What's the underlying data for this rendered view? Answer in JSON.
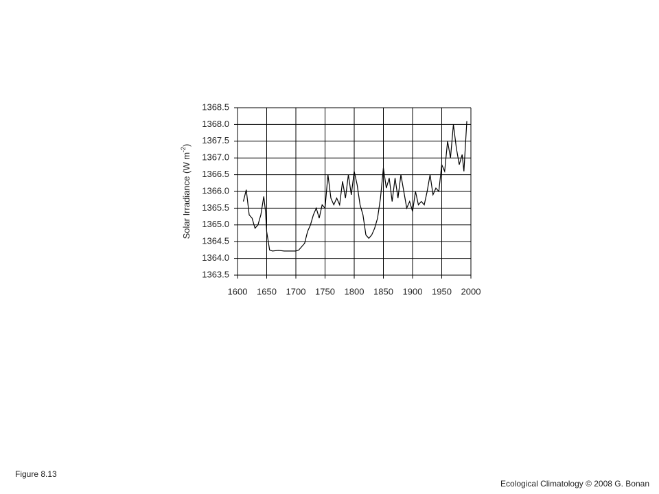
{
  "chart_data": {
    "type": "line",
    "ylabel": [
      "Solar Irradiance (W m",
      "-2",
      ")"
    ],
    "x": [
      1610,
      1615,
      1620,
      1625,
      1630,
      1635,
      1640,
      1645,
      1648,
      1650,
      1655,
      1660,
      1670,
      1680,
      1690,
      1700,
      1705,
      1710,
      1715,
      1720,
      1725,
      1730,
      1735,
      1740,
      1745,
      1750,
      1755,
      1760,
      1765,
      1770,
      1775,
      1780,
      1785,
      1790,
      1795,
      1800,
      1805,
      1810,
      1815,
      1820,
      1825,
      1830,
      1835,
      1840,
      1845,
      1850,
      1855,
      1860,
      1865,
      1870,
      1875,
      1880,
      1885,
      1890,
      1895,
      1900,
      1905,
      1910,
      1915,
      1920,
      1925,
      1930,
      1935,
      1940,
      1945,
      1950,
      1955,
      1960,
      1965,
      1970,
      1975,
      1980,
      1985,
      1988,
      1993
    ],
    "series": [
      {
        "name": "Solar Irradiance",
        "color": "#000000",
        "values": [
          1365.7,
          1366.05,
          1365.3,
          1365.2,
          1364.9,
          1365.0,
          1365.3,
          1365.85,
          1365.4,
          1364.8,
          1364.25,
          1364.22,
          1364.24,
          1364.22,
          1364.22,
          1364.22,
          1364.25,
          1364.35,
          1364.45,
          1364.8,
          1365.0,
          1365.3,
          1365.5,
          1365.2,
          1365.6,
          1365.5,
          1366.5,
          1365.8,
          1365.6,
          1365.8,
          1365.6,
          1366.3,
          1365.8,
          1366.5,
          1365.9,
          1366.6,
          1366.2,
          1365.6,
          1365.3,
          1364.7,
          1364.6,
          1364.7,
          1364.9,
          1365.2,
          1365.8,
          1366.7,
          1366.1,
          1366.4,
          1365.7,
          1366.4,
          1365.8,
          1366.5,
          1366.0,
          1365.5,
          1365.7,
          1365.4,
          1366.0,
          1365.6,
          1365.7,
          1365.6,
          1366.0,
          1366.5,
          1365.9,
          1366.1,
          1366.0,
          1366.8,
          1366.6,
          1367.5,
          1367.0,
          1368.0,
          1367.3,
          1366.8,
          1367.1,
          1366.6,
          1368.1
        ]
      }
    ],
    "xlim": [
      1600,
      2000
    ],
    "xticks": [
      1600,
      1650,
      1700,
      1750,
      1800,
      1850,
      1900,
      1950,
      2000
    ],
    "ylim": [
      1363.5,
      1368.5
    ],
    "yticks": [
      1363.5,
      {
        "value": 1364,
        "label": "1364.0"
      },
      1364.5,
      {
        "value": 1365,
        "label": "1365.0"
      },
      1365.5,
      {
        "value": 1366,
        "label": "1366.0"
      },
      1366.5,
      {
        "value": 1367,
        "label": "1367.0"
      },
      1367.5,
      {
        "value": 1368,
        "label": "1368.0"
      },
      1368.5
    ],
    "grid": true
  },
  "footer": {
    "figure": "Figure 8.13",
    "credit": "Ecological Climatology © 2008 G. Bonan"
  }
}
